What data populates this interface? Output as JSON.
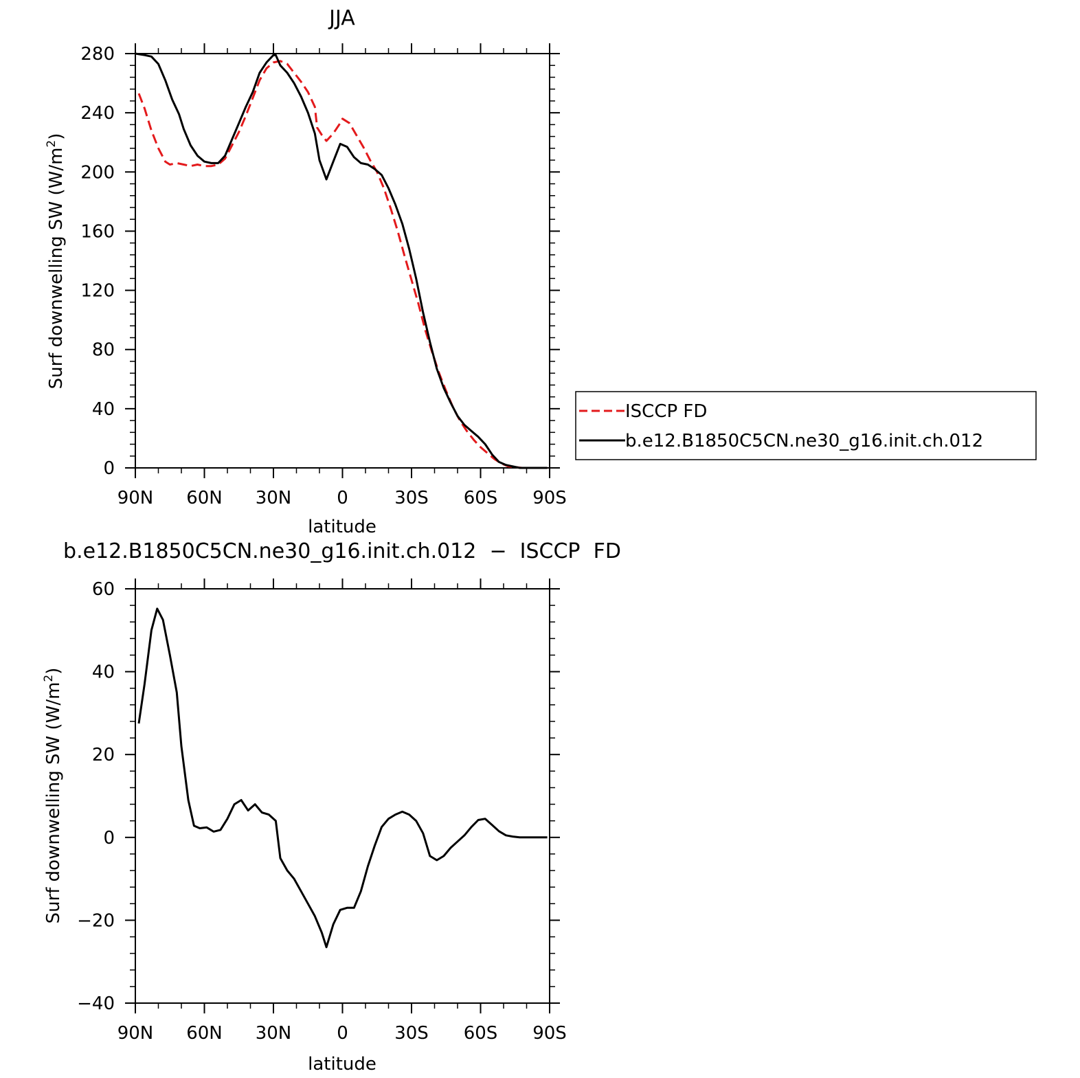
{
  "chart_data": [
    {
      "type": "line",
      "title": "JJA",
      "xlabel": "latitude",
      "ylabel": "Surf  downwelling SW  (W/m",
      "ylabel_sup": "2",
      "ylabel_end": ")",
      "x_ticks": [
        {
          "value": 90,
          "label": "90N"
        },
        {
          "value": 60,
          "label": "60N"
        },
        {
          "value": 30,
          "label": "30N"
        },
        {
          "value": 0,
          "label": "0"
        },
        {
          "value": -30,
          "label": "30S"
        },
        {
          "value": -60,
          "label": "60S"
        },
        {
          "value": -90,
          "label": "90S"
        }
      ],
      "y_ticks": [
        0,
        40,
        80,
        120,
        160,
        200,
        240,
        280
      ],
      "xlim": [
        90,
        -90
      ],
      "ylim": [
        0,
        280
      ],
      "grid": false,
      "legend_position": "right",
      "series": [
        {
          "name": "ISCCP FD",
          "color": "#e31a1c",
          "dash": "dashed",
          "points": [
            [
              88.5,
              253
            ],
            [
              86,
              243
            ],
            [
              83,
              228
            ],
            [
              80,
              216
            ],
            [
              77,
              207
            ],
            [
              75,
              205
            ],
            [
              72,
              206
            ],
            [
              69,
              205
            ],
            [
              66,
              204
            ],
            [
              63,
              205
            ],
            [
              60,
              204
            ],
            [
              57,
              204
            ],
            [
              54,
              205
            ],
            [
              51,
              209
            ],
            [
              48,
              218
            ],
            [
              45,
              227
            ],
            [
              42,
              238
            ],
            [
              39,
              250
            ],
            [
              36,
              262
            ],
            [
              33,
              270
            ],
            [
              30,
              274
            ],
            [
              27,
              275
            ],
            [
              24,
              273
            ],
            [
              21,
              267
            ],
            [
              18,
              261
            ],
            [
              15,
              254
            ],
            [
              12,
              244
            ],
            [
              11,
              230
            ],
            [
              9,
              225
            ],
            [
              7,
              221
            ],
            [
              4,
              226
            ],
            [
              1,
              233
            ],
            [
              0,
              236
            ],
            [
              -3,
              233
            ],
            [
              -6,
              225
            ],
            [
              -9,
              217
            ],
            [
              -12,
              208
            ],
            [
              -15,
              200
            ],
            [
              -18,
              189
            ],
            [
              -21,
              175
            ],
            [
              -24,
              160
            ],
            [
              -27,
              143
            ],
            [
              -30,
              127
            ],
            [
              -33,
              111
            ],
            [
              -36,
              93
            ],
            [
              -39,
              78
            ],
            [
              -42,
              64
            ],
            [
              -45,
              52
            ],
            [
              -48,
              41
            ],
            [
              -51,
              32
            ],
            [
              -54,
              25
            ],
            [
              -57,
              19
            ],
            [
              -60,
              14
            ],
            [
              -63,
              10
            ],
            [
              -66,
              6
            ],
            [
              -69,
              3
            ],
            [
              -72,
              1
            ],
            [
              -75,
              0.5
            ],
            [
              -78,
              0
            ],
            [
              -89,
              0
            ]
          ]
        },
        {
          "name": "b.e12.B1850C5CN.ne30_g16.init.ch.012",
          "color": "#000000",
          "dash": "solid",
          "points": [
            [
              90,
              280
            ],
            [
              86,
              279
            ],
            [
              83,
              278
            ],
            [
              80,
              273
            ],
            [
              77,
              262
            ],
            [
              74,
              249
            ],
            [
              71,
              239
            ],
            [
              69,
              229
            ],
            [
              66,
              218
            ],
            [
              63,
              211
            ],
            [
              60,
              207
            ],
            [
              57,
              206
            ],
            [
              54,
              206
            ],
            [
              51,
              211
            ],
            [
              48,
              222
            ],
            [
              45,
              233
            ],
            [
              42,
              244
            ],
            [
              39,
              254
            ],
            [
              36,
              267
            ],
            [
              33,
              274
            ],
            [
              30,
              279
            ],
            [
              29,
              279
            ],
            [
              27,
              272
            ],
            [
              24,
              267
            ],
            [
              21,
              260
            ],
            [
              18,
              251
            ],
            [
              15,
              240
            ],
            [
              12,
              226
            ],
            [
              10,
              208
            ],
            [
              7,
              195
            ],
            [
              4,
              207
            ],
            [
              1,
              219
            ],
            [
              -2,
              217
            ],
            [
              -5,
              210
            ],
            [
              -8,
              206
            ],
            [
              -11,
              205
            ],
            [
              -14,
              202
            ],
            [
              -17,
              198
            ],
            [
              -20,
              189
            ],
            [
              -23,
              178
            ],
            [
              -26,
              165
            ],
            [
              -29,
              148
            ],
            [
              -32,
              128
            ],
            [
              -35,
              105
            ],
            [
              -38,
              85
            ],
            [
              -41,
              67
            ],
            [
              -44,
              54
            ],
            [
              -47,
              44
            ],
            [
              -50,
              35
            ],
            [
              -53,
              29
            ],
            [
              -56,
              25
            ],
            [
              -59,
              21
            ],
            [
              -62,
              16
            ],
            [
              -65,
              9
            ],
            [
              -68,
              4
            ],
            [
              -71,
              2
            ],
            [
              -74,
              1
            ],
            [
              -77,
              0
            ],
            [
              -89,
              0
            ]
          ]
        }
      ]
    },
    {
      "type": "line",
      "title": "b.e12.B1850C5CN.ne30_g16.init.ch.012  −  ISCCP  FD",
      "xlabel": "latitude",
      "ylabel": "Surf  downwelling SW  (W/m",
      "ylabel_sup": "2",
      "ylabel_end": ")",
      "x_ticks": [
        {
          "value": 90,
          "label": "90N"
        },
        {
          "value": 60,
          "label": "60N"
        },
        {
          "value": 30,
          "label": "30N"
        },
        {
          "value": 0,
          "label": "0"
        },
        {
          "value": -30,
          "label": "30S"
        },
        {
          "value": -60,
          "label": "60S"
        },
        {
          "value": -90,
          "label": "90S"
        }
      ],
      "y_ticks": [
        -40,
        -20,
        0,
        20,
        40,
        60
      ],
      "y_tick_labels": [
        "−40",
        "−20",
        "0",
        "20",
        "40",
        "60"
      ],
      "xlim": [
        90,
        -90
      ],
      "ylim": [
        -40,
        60
      ],
      "grid": false,
      "series": [
        {
          "color": "#000000",
          "dash": "solid",
          "points": [
            [
              88.5,
              27.5
            ],
            [
              86,
              37
            ],
            [
              83,
              50
            ],
            [
              80.5,
              55.2
            ],
            [
              78,
              52.5
            ],
            [
              75,
              44
            ],
            [
              72,
              35
            ],
            [
              70,
              22
            ],
            [
              67,
              9
            ],
            [
              64.5,
              2.8
            ],
            [
              62,
              2.2
            ],
            [
              59,
              2.4
            ],
            [
              56,
              1.4
            ],
            [
              53,
              1.8
            ],
            [
              50,
              4.5
            ],
            [
              47,
              8
            ],
            [
              44,
              9
            ],
            [
              41,
              6.5
            ],
            [
              38,
              8
            ],
            [
              35,
              6
            ],
            [
              32,
              5.5
            ],
            [
              29,
              4
            ],
            [
              27,
              -5
            ],
            [
              24,
              -8
            ],
            [
              21,
              -10
            ],
            [
              18,
              -13
            ],
            [
              15,
              -16
            ],
            [
              12,
              -19
            ],
            [
              9,
              -23
            ],
            [
              7,
              -26.5
            ],
            [
              4,
              -21
            ],
            [
              1,
              -17.5
            ],
            [
              -2,
              -17
            ],
            [
              -5,
              -17
            ],
            [
              -8,
              -13
            ],
            [
              -11,
              -7
            ],
            [
              -14,
              -2
            ],
            [
              -17,
              2.5
            ],
            [
              -20,
              4.5
            ],
            [
              -23,
              5.5
            ],
            [
              -26,
              6.2
            ],
            [
              -29,
              5.5
            ],
            [
              -32,
              4
            ],
            [
              -35,
              1
            ],
            [
              -38,
              -4.5
            ],
            [
              -41,
              -5.5
            ],
            [
              -44,
              -4.5
            ],
            [
              -47,
              -2.5
            ],
            [
              -50,
              -1
            ],
            [
              -53,
              0.5
            ],
            [
              -56,
              2.5
            ],
            [
              -59,
              4.2
            ],
            [
              -62,
              4.5
            ],
            [
              -65,
              3
            ],
            [
              -68,
              1.5
            ],
            [
              -71,
              0.5
            ],
            [
              -74,
              0.2
            ],
            [
              -77,
              0
            ],
            [
              -89,
              0
            ]
          ]
        }
      ]
    }
  ]
}
